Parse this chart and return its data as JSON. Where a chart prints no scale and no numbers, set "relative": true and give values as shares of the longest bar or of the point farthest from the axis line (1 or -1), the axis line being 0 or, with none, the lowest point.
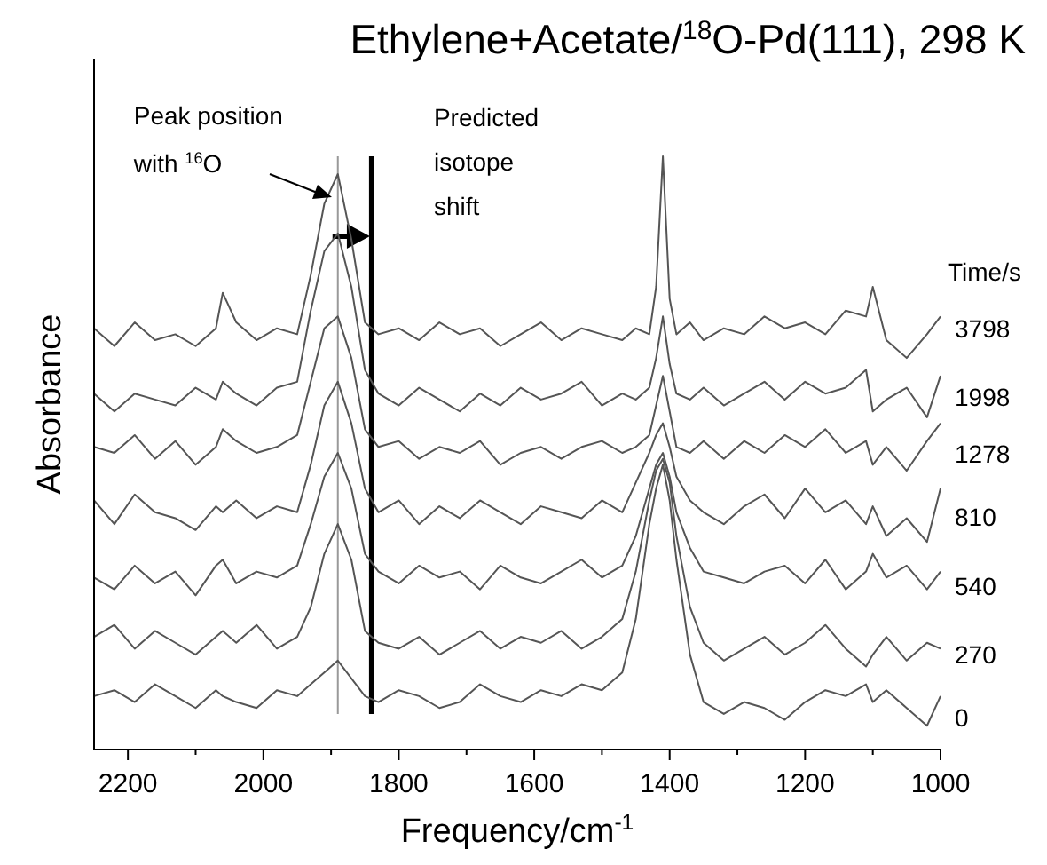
{
  "chart_data": {
    "type": "line",
    "title": "Ethylene+Acetate/$^{18}$O-Pd(111), 298 K",
    "xlabel": "Frequency/cm$^{-1}$",
    "ylabel": "Absorbance",
    "legend_title": "Time/s",
    "relative": true,
    "legend": "right",
    "line_style": "solid",
    "xlim": [
      2250,
      1000
    ],
    "xticks": [
      2200,
      {
        "value": 2100,
        "label": null
      },
      2000,
      {
        "value": 1900,
        "label": null
      },
      1800,
      {
        "value": 1700,
        "label": null
      },
      1600,
      {
        "value": 1500,
        "label": null
      },
      1400,
      {
        "value": 1300,
        "label": null
      },
      1200,
      {
        "value": 1100,
        "label": null
      },
      1000
    ],
    "x": [
      2250,
      2220,
      2190,
      2160,
      2130,
      2100,
      2070,
      2060,
      2040,
      2010,
      1980,
      1950,
      1930,
      1910,
      1890,
      1870,
      1850,
      1830,
      1800,
      1770,
      1740,
      1710,
      1680,
      1650,
      1620,
      1590,
      1560,
      1530,
      1500,
      1470,
      1450,
      1430,
      1420,
      1410,
      1400,
      1390,
      1370,
      1350,
      1320,
      1290,
      1260,
      1230,
      1200,
      1170,
      1140,
      1110,
      1100,
      1080,
      1050,
      1020,
      1000
    ],
    "series": [
      {
        "name": "3798",
        "color": "#555555",
        "values": [
          0.71,
          0.68,
          0.72,
          0.69,
          0.7,
          0.68,
          0.71,
          0.77,
          0.72,
          0.69,
          0.71,
          0.7,
          0.8,
          0.92,
          0.97,
          0.86,
          0.72,
          0.7,
          0.71,
          0.69,
          0.72,
          0.7,
          0.71,
          0.68,
          0.7,
          0.72,
          0.69,
          0.71,
          0.7,
          0.69,
          0.71,
          0.7,
          0.78,
          1.0,
          0.76,
          0.7,
          0.72,
          0.69,
          0.71,
          0.7,
          0.73,
          0.71,
          0.72,
          0.7,
          0.74,
          0.73,
          0.78,
          0.69,
          0.66,
          0.7,
          0.73
        ]
      },
      {
        "name": "1998",
        "color": "#555555",
        "values": [
          0.6,
          0.57,
          0.6,
          0.59,
          0.58,
          0.61,
          0.59,
          0.62,
          0.6,
          0.58,
          0.61,
          0.62,
          0.74,
          0.84,
          0.87,
          0.78,
          0.64,
          0.6,
          0.58,
          0.61,
          0.59,
          0.57,
          0.6,
          0.58,
          0.61,
          0.59,
          0.6,
          0.62,
          0.58,
          0.6,
          0.59,
          0.61,
          0.66,
          0.73,
          0.65,
          0.6,
          0.59,
          0.61,
          0.58,
          0.6,
          0.62,
          0.59,
          0.62,
          0.6,
          0.61,
          0.64,
          0.57,
          0.59,
          0.61,
          0.56,
          0.63
        ]
      },
      {
        "name": "1278",
        "color": "#555555",
        "values": [
          0.51,
          0.5,
          0.53,
          0.49,
          0.52,
          0.48,
          0.51,
          0.54,
          0.52,
          0.5,
          0.51,
          0.53,
          0.62,
          0.71,
          0.73,
          0.66,
          0.54,
          0.51,
          0.52,
          0.49,
          0.51,
          0.5,
          0.52,
          0.48,
          0.5,
          0.51,
          0.49,
          0.51,
          0.52,
          0.5,
          0.51,
          0.53,
          0.58,
          0.63,
          0.57,
          0.51,
          0.5,
          0.52,
          0.49,
          0.52,
          0.5,
          0.53,
          0.51,
          0.54,
          0.5,
          0.52,
          0.48,
          0.51,
          0.47,
          0.52,
          0.55
        ]
      },
      {
        "name": "810",
        "color": "#555555",
        "values": [
          0.42,
          0.38,
          0.43,
          0.4,
          0.39,
          0.37,
          0.41,
          0.4,
          0.42,
          0.39,
          0.41,
          0.4,
          0.48,
          0.58,
          0.62,
          0.55,
          0.44,
          0.4,
          0.42,
          0.38,
          0.41,
          0.39,
          0.42,
          0.4,
          0.38,
          0.41,
          0.4,
          0.39,
          0.42,
          0.4,
          0.45,
          0.5,
          0.53,
          0.55,
          0.51,
          0.46,
          0.42,
          0.4,
          0.38,
          0.41,
          0.43,
          0.39,
          0.44,
          0.4,
          0.42,
          0.38,
          0.41,
          0.36,
          0.39,
          0.35,
          0.44
        ]
      },
      {
        "name": "540",
        "color": "#555555",
        "values": [
          0.29,
          0.27,
          0.31,
          0.28,
          0.3,
          0.26,
          0.31,
          0.32,
          0.28,
          0.3,
          0.29,
          0.31,
          0.38,
          0.46,
          0.5,
          0.44,
          0.33,
          0.3,
          0.28,
          0.31,
          0.29,
          0.3,
          0.27,
          0.31,
          0.29,
          0.28,
          0.3,
          0.32,
          0.29,
          0.31,
          0.36,
          0.44,
          0.48,
          0.5,
          0.46,
          0.4,
          0.34,
          0.3,
          0.29,
          0.28,
          0.3,
          0.31,
          0.28,
          0.32,
          0.27,
          0.3,
          0.33,
          0.29,
          0.31,
          0.27,
          0.3
        ]
      },
      {
        "name": "270",
        "color": "#555555",
        "values": [
          0.19,
          0.21,
          0.17,
          0.2,
          0.18,
          0.16,
          0.19,
          0.2,
          0.18,
          0.21,
          0.17,
          0.19,
          0.24,
          0.33,
          0.38,
          0.32,
          0.2,
          0.18,
          0.17,
          0.19,
          0.16,
          0.18,
          0.2,
          0.17,
          0.19,
          0.18,
          0.2,
          0.17,
          0.19,
          0.22,
          0.3,
          0.42,
          0.47,
          0.49,
          0.45,
          0.36,
          0.24,
          0.18,
          0.15,
          0.17,
          0.19,
          0.16,
          0.18,
          0.21,
          0.17,
          0.14,
          0.16,
          0.19,
          0.15,
          0.18,
          0.17
        ]
      },
      {
        "name": "0",
        "color": "#555555",
        "values": [
          0.09,
          0.1,
          0.08,
          0.11,
          0.09,
          0.07,
          0.1,
          0.09,
          0.08,
          0.07,
          0.1,
          0.09,
          0.11,
          0.13,
          0.15,
          0.12,
          0.09,
          0.08,
          0.1,
          0.09,
          0.07,
          0.08,
          0.11,
          0.09,
          0.08,
          0.1,
          0.09,
          0.11,
          0.1,
          0.13,
          0.22,
          0.38,
          0.44,
          0.48,
          0.42,
          0.32,
          0.16,
          0.08,
          0.06,
          0.08,
          0.07,
          0.05,
          0.08,
          0.1,
          0.09,
          0.11,
          0.08,
          0.1,
          0.07,
          0.04,
          0.09
        ]
      }
    ],
    "ref_lines": [
      {
        "axis": "x",
        "value": 1890,
        "label": "Peak position with $^{16}$O",
        "color": "#999999"
      },
      {
        "axis": "x",
        "value": 1840,
        "label": "Predicted isotope shift",
        "color": "#000000"
      }
    ]
  }
}
